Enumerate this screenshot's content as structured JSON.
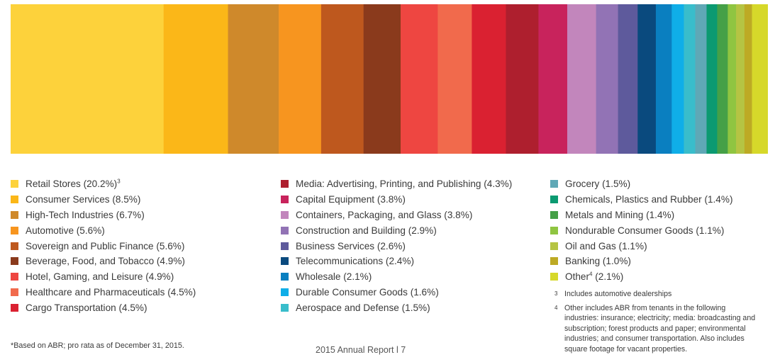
{
  "chart_data": {
    "type": "bar",
    "orientation": "stacked-horizontal",
    "categories": [
      "Retail Stores",
      "Consumer Services",
      "High-Tech Industries",
      "Automotive",
      "Sovereign and Public Finance",
      "Beverage, Food, and Tobacco",
      "Hotel, Gaming, and Leisure",
      "Healthcare and Pharmaceuticals",
      "Cargo Transportation",
      "Media: Advertising, Printing, and Publishing",
      "Capital Equipment",
      "Containers, Packaging, and Glass",
      "Construction and Building",
      "Business Services",
      "Telecommunications",
      "Wholesale",
      "Durable Consumer Goods",
      "Aerospace and Defense",
      "Grocery",
      "Chemicals, Plastics and Rubber",
      "Metals and Mining",
      "Nondurable Consumer Goods",
      "Oil and Gas",
      "Banking",
      "Other"
    ],
    "values": [
      20.2,
      8.5,
      6.7,
      5.6,
      5.6,
      4.9,
      4.9,
      4.5,
      4.5,
      4.3,
      3.8,
      3.8,
      2.9,
      2.6,
      2.4,
      2.1,
      1.6,
      1.5,
      1.5,
      1.4,
      1.4,
      1.1,
      1.1,
      1.0,
      2.1
    ],
    "colors": [
      "#FDD23B",
      "#FBB718",
      "#CF892B",
      "#F7951F",
      "#BE581E",
      "#8A3A1C",
      "#EE4641",
      "#F16A4C",
      "#DA2131",
      "#AE1F2E",
      "#C8235C",
      "#C286BC",
      "#9273B5",
      "#5E5A9C",
      "#0A4A7E",
      "#0A7FC0",
      "#0FAEE8",
      "#39BDCB",
      "#5FA8B6",
      "#0B9A71",
      "#45A047",
      "#8FC541",
      "#B5C443",
      "#BDAA24",
      "#D6D82A"
    ],
    "legend_columns": [
      [
        {
          "label": "Retail Stores (20.2%)",
          "sup": "3"
        },
        {
          "label": "Consumer Services (8.5%)"
        },
        {
          "label": "High-Tech Industries (6.7%)"
        },
        {
          "label": "Automotive (5.6%)"
        },
        {
          "label": "Sovereign and Public Finance (5.6%)"
        },
        {
          "label": "Beverage, Food, and Tobacco (4.9%)"
        },
        {
          "label": "Hotel, Gaming, and Leisure (4.9%)"
        },
        {
          "label": "Healthcare and Pharmaceuticals (4.5%)"
        },
        {
          "label": "Cargo Transportation (4.5%)"
        }
      ],
      [
        {
          "label": "Media: Advertising, Printing, and Publishing (4.3%)"
        },
        {
          "label": "Capital Equipment (3.8%)"
        },
        {
          "label": "Containers, Packaging, and Glass (3.8%)"
        },
        {
          "label": "Construction and Building (2.9%)"
        },
        {
          "label": "Business Services (2.6%)"
        },
        {
          "label": "Telecommunications (2.4%)"
        },
        {
          "label": "Wholesale (2.1%)"
        },
        {
          "label": "Durable Consumer Goods (1.6%)"
        },
        {
          "label": "Aerospace and Defense (1.5%)"
        }
      ],
      [
        {
          "label": "Grocery (1.5%)"
        },
        {
          "label": "Chemicals, Plastics and Rubber (1.4%)"
        },
        {
          "label": "Metals and Mining (1.4%)"
        },
        {
          "label": "Nondurable Consumer Goods (1.1%)"
        },
        {
          "label": "Oil and Gas (1.1%)"
        },
        {
          "label": "Banking (1.0%)"
        },
        {
          "label": "Other",
          "sup": "4",
          "suffix": " (2.1%)"
        }
      ]
    ],
    "legend_position": "bottom",
    "title": "",
    "xlabel": "",
    "ylabel": "",
    "grid": false
  },
  "footnotes": [
    {
      "num": "3",
      "text": "Includes automotive dealerships"
    },
    {
      "num": "4",
      "text": "Other includes ABR from tenants in the following industries: insurance; electricity; media: broadcasting and subscription; forest products and paper; environmental industries; and consumer transportation. Also includes square footage for vacant properties."
    }
  ],
  "basis_note": "*Based on ABR; pro rata as of December 31, 2015.",
  "page_footer": "2015 Annual Report l 7"
}
